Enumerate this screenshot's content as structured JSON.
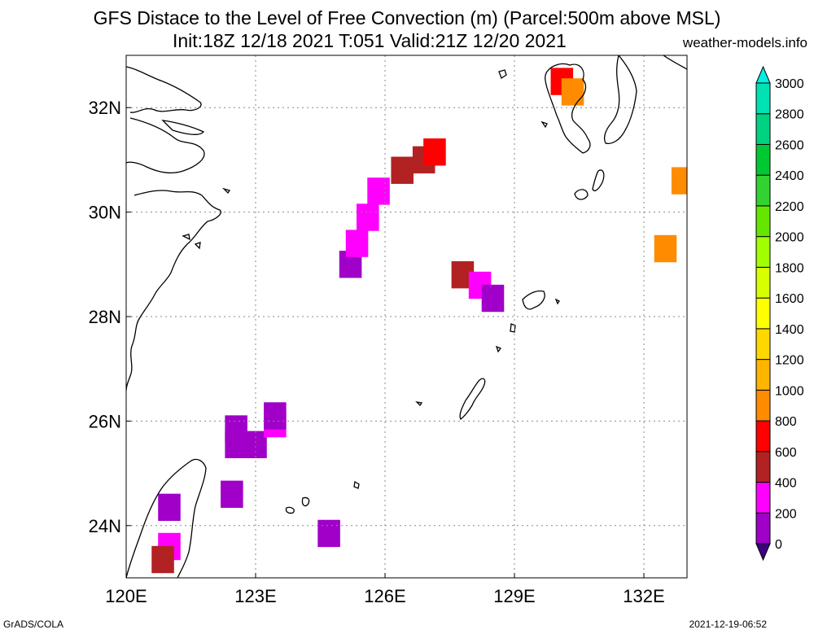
{
  "header": {
    "title_line1": "GFS Distace to the Level of Free Convection (m) (Parcel:500m above MSL)",
    "title_line2": "Init:18Z 12/18 2021 T:051 Valid:21Z 12/20 2021",
    "site": "weather-models.info"
  },
  "footer": {
    "left": "GrADS/COLA",
    "right": "2021-12-19-06:52"
  },
  "map": {
    "lon_range": [
      120,
      133
    ],
    "lat_range": [
      23,
      33
    ],
    "lon_ticks": [
      {
        "value": 120,
        "label": "120E"
      },
      {
        "value": 123,
        "label": "123E"
      },
      {
        "value": 126,
        "label": "126E"
      },
      {
        "value": 129,
        "label": "129E"
      },
      {
        "value": 132,
        "label": "132E"
      }
    ],
    "lat_ticks": [
      {
        "value": 24,
        "label": "24N"
      },
      {
        "value": 26,
        "label": "26N"
      },
      {
        "value": 28,
        "label": "28N"
      },
      {
        "value": 30,
        "label": "30N"
      },
      {
        "value": 32,
        "label": "32N"
      }
    ],
    "grid": "dotted"
  },
  "colorbar": {
    "levels": [
      {
        "value": 0,
        "label": "0"
      },
      {
        "value": 200,
        "label": "200"
      },
      {
        "value": 400,
        "label": "400"
      },
      {
        "value": 600,
        "label": "600"
      },
      {
        "value": 800,
        "label": "800"
      },
      {
        "value": 1000,
        "label": "1000"
      },
      {
        "value": 1200,
        "label": "1200"
      },
      {
        "value": 1400,
        "label": "1400"
      },
      {
        "value": 1600,
        "label": "1600"
      },
      {
        "value": 1800,
        "label": "1800"
      },
      {
        "value": 2000,
        "label": "2000"
      },
      {
        "value": 2200,
        "label": "2200"
      },
      {
        "value": 2400,
        "label": "2400"
      },
      {
        "value": 2600,
        "label": "2600"
      },
      {
        "value": 2800,
        "label": "2800"
      },
      {
        "value": 3000,
        "label": "3000"
      }
    ],
    "colors": [
      "#a000c8",
      "#ff00ff",
      "#b22222",
      "#ff0000",
      "#ff8c00",
      "#ffb400",
      "#ffd700",
      "#ffff00",
      "#d7ff00",
      "#a0ff00",
      "#64e600",
      "#32d232",
      "#00c832",
      "#00d282",
      "#00e1b4",
      "#00f0e1"
    ],
    "low_color": "#3c0080",
    "high_color": "#00f0e1"
  },
  "chart_data": {
    "type": "heatmap",
    "variable": "Distance to LFC (m)",
    "cells": [
      {
        "lon": 122.55,
        "lat": 25.55,
        "value": 150
      },
      {
        "lon": 123.0,
        "lat": 25.55,
        "value": 150
      },
      {
        "lon": 122.55,
        "lat": 25.85,
        "value": 50
      },
      {
        "lon": 123.45,
        "lat": 25.95,
        "value": 350
      },
      {
        "lon": 123.45,
        "lat": 26.1,
        "value": 150
      },
      {
        "lon": 122.45,
        "lat": 24.6,
        "value": 150
      },
      {
        "lon": 121.0,
        "lat": 24.35,
        "value": 150
      },
      {
        "lon": 121.0,
        "lat": 23.6,
        "value": 350
      },
      {
        "lon": 120.85,
        "lat": 23.35,
        "value": 450
      },
      {
        "lon": 124.7,
        "lat": 23.85,
        "value": 150
      },
      {
        "lon": 125.2,
        "lat": 29.0,
        "value": 150
      },
      {
        "lon": 125.35,
        "lat": 29.4,
        "value": 350
      },
      {
        "lon": 125.6,
        "lat": 29.9,
        "value": 350
      },
      {
        "lon": 125.85,
        "lat": 30.4,
        "value": 350
      },
      {
        "lon": 126.4,
        "lat": 30.8,
        "value": 450
      },
      {
        "lon": 126.9,
        "lat": 31.0,
        "value": 450
      },
      {
        "lon": 127.15,
        "lat": 31.15,
        "value": 650
      },
      {
        "lon": 127.8,
        "lat": 28.8,
        "value": 450
      },
      {
        "lon": 128.2,
        "lat": 28.6,
        "value": 350
      },
      {
        "lon": 128.5,
        "lat": 28.35,
        "value": 150
      },
      {
        "lon": 130.1,
        "lat": 32.5,
        "value": 650
      },
      {
        "lon": 130.35,
        "lat": 32.3,
        "value": 850
      },
      {
        "lon": 132.5,
        "lat": 29.3,
        "value": 950
      },
      {
        "lon": 132.9,
        "lat": 30.6,
        "value": 850
      }
    ]
  }
}
